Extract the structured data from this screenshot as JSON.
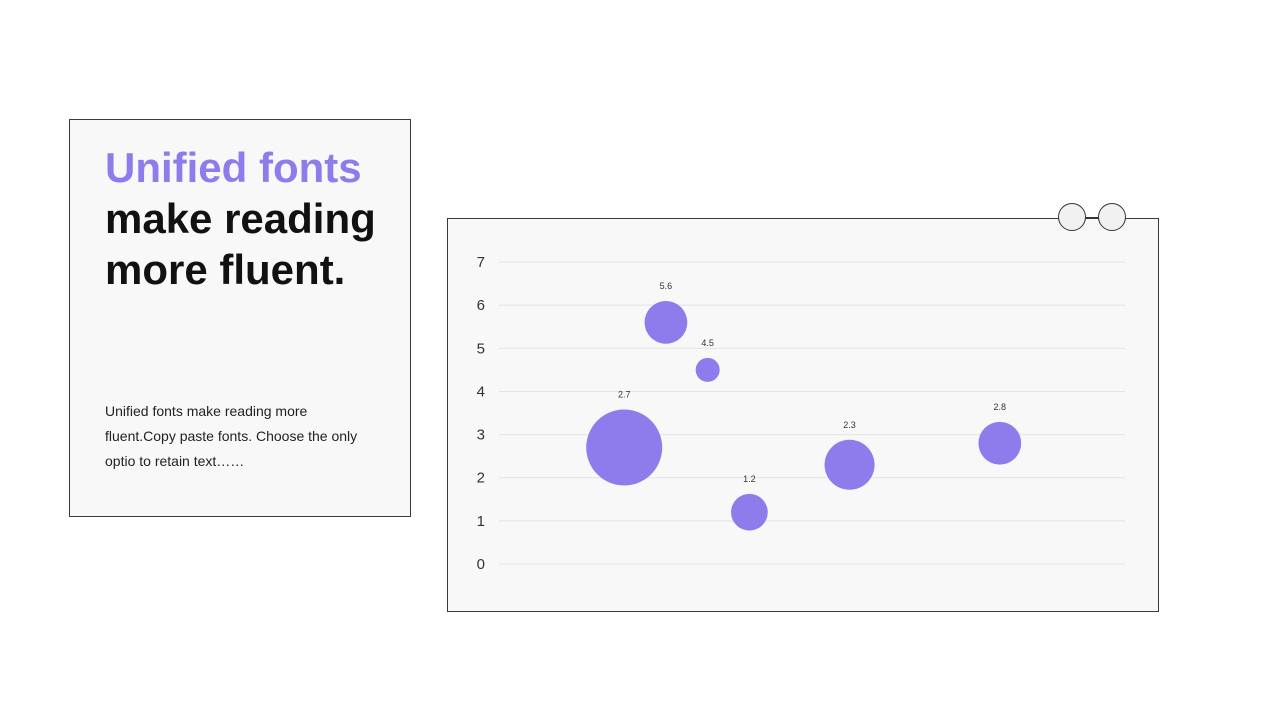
{
  "slide": {
    "headline_accent": "Unified fonts",
    "headline_rest": " make reading more fluent.",
    "body": "Unified fonts make reading more fluent.Copy paste fonts. Choose the only optio to retain text……"
  },
  "colors": {
    "accent": "#8f7cec",
    "bubble": "#8f7cec",
    "text": "#111111",
    "card_background": "#f8f8f8",
    "gridline": "#e3e3e3"
  },
  "chart_data": {
    "type": "scatter",
    "variant": "bubble",
    "title": "",
    "xlabel": "",
    "ylabel": "",
    "ylim": [
      0,
      7
    ],
    "yticks": [
      0,
      1,
      2,
      3,
      4,
      5,
      6,
      7
    ],
    "x_axis_labels_shown": false,
    "grid": "horizontal",
    "legend": "none",
    "points": [
      {
        "x": 3,
        "y": 2.7,
        "size": 3.0,
        "label": "2.7"
      },
      {
        "x": 4,
        "y": 5.6,
        "size": 0.95,
        "label": "5.6"
      },
      {
        "x": 5,
        "y": 4.5,
        "size": 0.3,
        "label": "4.5"
      },
      {
        "x": 6,
        "y": 1.2,
        "size": 0.7,
        "label": "1.2"
      },
      {
        "x": 8.4,
        "y": 2.3,
        "size": 1.3,
        "label": "2.3"
      },
      {
        "x": 12,
        "y": 2.8,
        "size": 0.95,
        "label": "2.8"
      }
    ],
    "xlim": [
      0,
      15
    ]
  }
}
